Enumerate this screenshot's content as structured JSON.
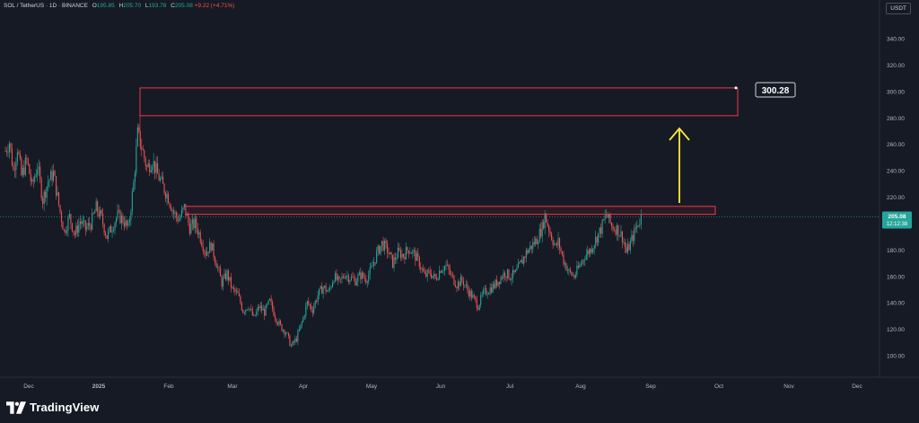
{
  "header": {
    "symbol": "SOL / TetherUS · 1D · BINANCE",
    "o_label": "O",
    "o": "195.85",
    "h_label": "H",
    "h": "205.70",
    "l_label": "L",
    "l": "193.78",
    "c_label": "C",
    "c": "205.08",
    "change": "+9.22 (+4.71%)"
  },
  "currency": "USDT",
  "branding": {
    "name": "TradingView"
  },
  "colors": {
    "up": "#26a69a",
    "down": "#ef5350",
    "zone": "#f23645",
    "arrow": "#ffeb3b",
    "background": "#161a25"
  },
  "chart_data": {
    "type": "candlestick",
    "y_ticks": [
      "340.00",
      "320.00",
      "300.00",
      "280.00",
      "260.00",
      "240.00",
      "220.00",
      "200.00",
      "180.00",
      "160.00",
      "140.00",
      "120.00",
      "100.00"
    ],
    "y_tick_values": [
      340,
      320,
      300,
      280,
      260,
      240,
      220,
      200,
      180,
      160,
      140,
      120,
      100
    ],
    "x_ticks": [
      "Dec",
      "2025",
      "Feb",
      "Mar",
      "Apr",
      "May",
      "Jun",
      "Jul",
      "Aug",
      "Sep",
      "Oct",
      "Nov",
      "Dec"
    ],
    "ylim": [
      87,
      360
    ],
    "last_price": "205.08",
    "countdown": "12:12:38",
    "target_label": "300.28",
    "target_zone": {
      "low": 283,
      "high": 302
    },
    "resistance_zone": {
      "low": 207,
      "high": 213
    },
    "price_path": [
      [
        0,
        255
      ],
      [
        3,
        262
      ],
      [
        6,
        240
      ],
      [
        9,
        258
      ],
      [
        12,
        236
      ],
      [
        16,
        248
      ],
      [
        20,
        228
      ],
      [
        24,
        244
      ],
      [
        28,
        218
      ],
      [
        32,
        232
      ],
      [
        36,
        238
      ],
      [
        40,
        214
      ],
      [
        44,
        194
      ],
      [
        48,
        205
      ],
      [
        52,
        192
      ],
      [
        56,
        202
      ],
      [
        60,
        196
      ],
      [
        64,
        200
      ],
      [
        68,
        212
      ],
      [
        72,
        204
      ],
      [
        76,
        190
      ],
      [
        80,
        198
      ],
      [
        84,
        206
      ],
      [
        88,
        203
      ],
      [
        92,
        196
      ],
      [
        96,
        230
      ],
      [
        99,
        268
      ],
      [
        102,
        258
      ],
      [
        106,
        242
      ],
      [
        110,
        248
      ],
      [
        114,
        237
      ],
      [
        118,
        228
      ],
      [
        122,
        220
      ],
      [
        126,
        208
      ],
      [
        130,
        203
      ],
      [
        134,
        212
      ],
      [
        138,
        197
      ],
      [
        142,
        200
      ],
      [
        146,
        190
      ],
      [
        150,
        178
      ],
      [
        154,
        184
      ],
      [
        158,
        170
      ],
      [
        162,
        155
      ],
      [
        166,
        162
      ],
      [
        170,
        150
      ],
      [
        174,
        146
      ],
      [
        178,
        134
      ],
      [
        182,
        138
      ],
      [
        186,
        128
      ],
      [
        190,
        137
      ],
      [
        194,
        133
      ],
      [
        198,
        141
      ],
      [
        202,
        130
      ],
      [
        206,
        122
      ],
      [
        210,
        118
      ],
      [
        214,
        107
      ],
      [
        218,
        113
      ],
      [
        222,
        125
      ],
      [
        226,
        140
      ],
      [
        230,
        135
      ],
      [
        234,
        146
      ],
      [
        238,
        152
      ],
      [
        242,
        148
      ],
      [
        246,
        160
      ],
      [
        250,
        155
      ],
      [
        254,
        162
      ],
      [
        258,
        159
      ],
      [
        262,
        157
      ],
      [
        266,
        161
      ],
      [
        270,
        158
      ],
      [
        274,
        165
      ],
      [
        278,
        177
      ],
      [
        282,
        185
      ],
      [
        286,
        180
      ],
      [
        290,
        170
      ],
      [
        294,
        178
      ],
      [
        298,
        176
      ],
      [
        302,
        181
      ],
      [
        306,
        177
      ],
      [
        310,
        170
      ],
      [
        314,
        160
      ],
      [
        318,
        163
      ],
      [
        322,
        158
      ],
      [
        326,
        166
      ],
      [
        330,
        168
      ],
      [
        334,
        160
      ],
      [
        338,
        154
      ],
      [
        342,
        157
      ],
      [
        346,
        150
      ],
      [
        350,
        144
      ],
      [
        354,
        138
      ],
      [
        358,
        147
      ],
      [
        362,
        150
      ],
      [
        366,
        153
      ],
      [
        370,
        158
      ],
      [
        374,
        163
      ],
      [
        378,
        160
      ],
      [
        382,
        162
      ],
      [
        386,
        170
      ],
      [
        390,
        178
      ],
      [
        394,
        183
      ],
      [
        398,
        188
      ],
      [
        402,
        197
      ],
      [
        404,
        206
      ],
      [
        408,
        193
      ],
      [
        412,
        182
      ],
      [
        414,
        186
      ],
      [
        418,
        172
      ],
      [
        422,
        163
      ],
      [
        426,
        160
      ],
      [
        430,
        168
      ],
      [
        434,
        176
      ],
      [
        438,
        180
      ],
      [
        442,
        188
      ],
      [
        446,
        196
      ],
      [
        450,
        207
      ],
      [
        454,
        198
      ],
      [
        458,
        196
      ],
      [
        462,
        190
      ],
      [
        465,
        178
      ],
      [
        468,
        185
      ],
      [
        472,
        196
      ],
      [
        476,
        205
      ]
    ]
  }
}
